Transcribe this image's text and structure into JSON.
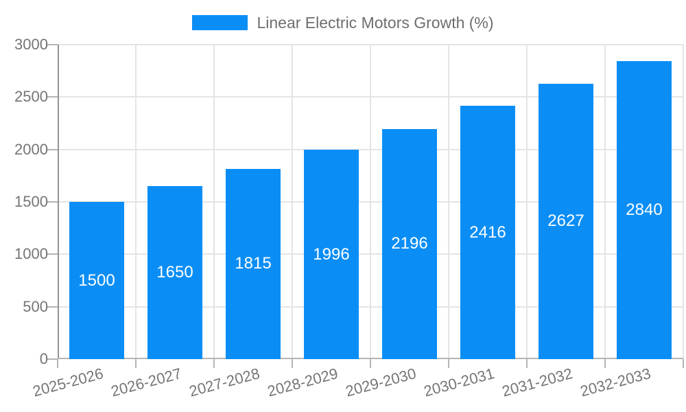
{
  "chart_data": {
    "type": "bar",
    "title": "Linear Electric Motors Growth (%)",
    "legend": {
      "position": "top-center",
      "entries": [
        "Linear Electric Motors Growth (%)"
      ]
    },
    "categories": [
      "2025-2026",
      "2026-2027",
      "2027-2028",
      "2028-2029",
      "2029-2030",
      "2030-2031",
      "2031-2032",
      "2032-2033"
    ],
    "values": [
      1500,
      1650,
      1815,
      1996,
      2196,
      2416,
      2627,
      2840
    ],
    "xlabel": "",
    "ylabel": "",
    "ylim": [
      0,
      3000
    ],
    "yticks": [
      0,
      500,
      1000,
      1500,
      2000,
      2500,
      3000
    ],
    "grid": "horizontal-and-vertical",
    "x_label_rotation_deg": -15,
    "value_labels_position": "centered-inside-bar",
    "colors": {
      "bar": "#0a8ef6",
      "bar_value_label": "#ffffff",
      "axis_text": "#757575",
      "legend_text": "#6e6e6e",
      "gridline": "#e4e4e4",
      "x_axis_line": "#b4b4b4",
      "y_axis_line": "#949494",
      "tick_mark": "#b4b4b4",
      "background": "#ffffff"
    }
  }
}
